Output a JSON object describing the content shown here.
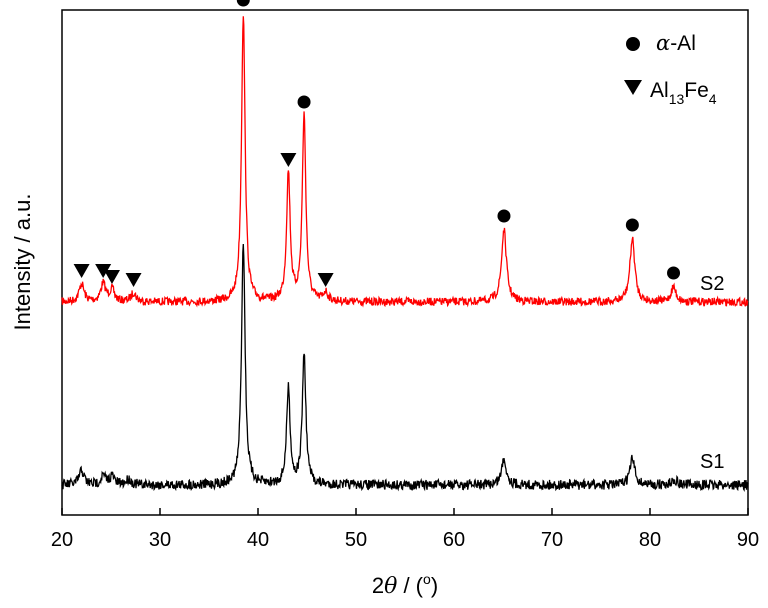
{
  "chart_data": {
    "type": "line",
    "title": "",
    "xlabel": "2θ / (°)",
    "ylabel": "Intensity / a.u.",
    "xlim": [
      20,
      90
    ],
    "xticks": [
      20,
      30,
      40,
      50,
      60,
      70,
      80,
      90
    ],
    "y_tick_labels": false,
    "grid": false,
    "legend_position": "top-right",
    "legend": [
      {
        "marker": "circle",
        "label": "α-Al",
        "color": "#000000"
      },
      {
        "marker": "triangle-down",
        "label": "Al13Fe4",
        "color": "#000000"
      }
    ],
    "series": [
      {
        "name": "S2",
        "color": "#ff0000",
        "peaks": [
          {
            "x": 22.0,
            "h": 0.06
          },
          {
            "x": 24.2,
            "h": 0.06
          },
          {
            "x": 25.1,
            "h": 0.04
          },
          {
            "x": 27.3,
            "h": 0.03
          },
          {
            "x": 38.5,
            "h": 0.96
          },
          {
            "x": 43.1,
            "h": 0.43
          },
          {
            "x": 44.7,
            "h": 0.62
          },
          {
            "x": 46.9,
            "h": 0.03
          },
          {
            "x": 65.1,
            "h": 0.24
          },
          {
            "x": 78.2,
            "h": 0.21
          },
          {
            "x": 82.4,
            "h": 0.05
          }
        ],
        "markers": [
          {
            "x": 22.0,
            "phase": "Al13Fe4"
          },
          {
            "x": 24.2,
            "phase": "Al13Fe4"
          },
          {
            "x": 25.1,
            "phase": "Al13Fe4"
          },
          {
            "x": 27.3,
            "phase": "Al13Fe4"
          },
          {
            "x": 38.5,
            "phase": "α-Al"
          },
          {
            "x": 43.1,
            "phase": "Al13Fe4"
          },
          {
            "x": 44.7,
            "phase": "α-Al"
          },
          {
            "x": 46.9,
            "phase": "Al13Fe4"
          },
          {
            "x": 65.1,
            "phase": "α-Al"
          },
          {
            "x": 78.2,
            "phase": "α-Al"
          },
          {
            "x": 82.4,
            "phase": "α-Al"
          }
        ]
      },
      {
        "name": "S1",
        "color": "#000000",
        "peaks": [
          {
            "x": 22.0,
            "h": 0.05
          },
          {
            "x": 24.2,
            "h": 0.03
          },
          {
            "x": 25.1,
            "h": 0.03
          },
          {
            "x": 26.8,
            "h": 0.02
          },
          {
            "x": 38.5,
            "h": 0.84
          },
          {
            "x": 43.1,
            "h": 0.33
          },
          {
            "x": 44.7,
            "h": 0.45
          },
          {
            "x": 65.1,
            "h": 0.09
          },
          {
            "x": 78.2,
            "h": 0.09
          },
          {
            "x": 82.5,
            "h": 0.02
          }
        ]
      }
    ]
  }
}
